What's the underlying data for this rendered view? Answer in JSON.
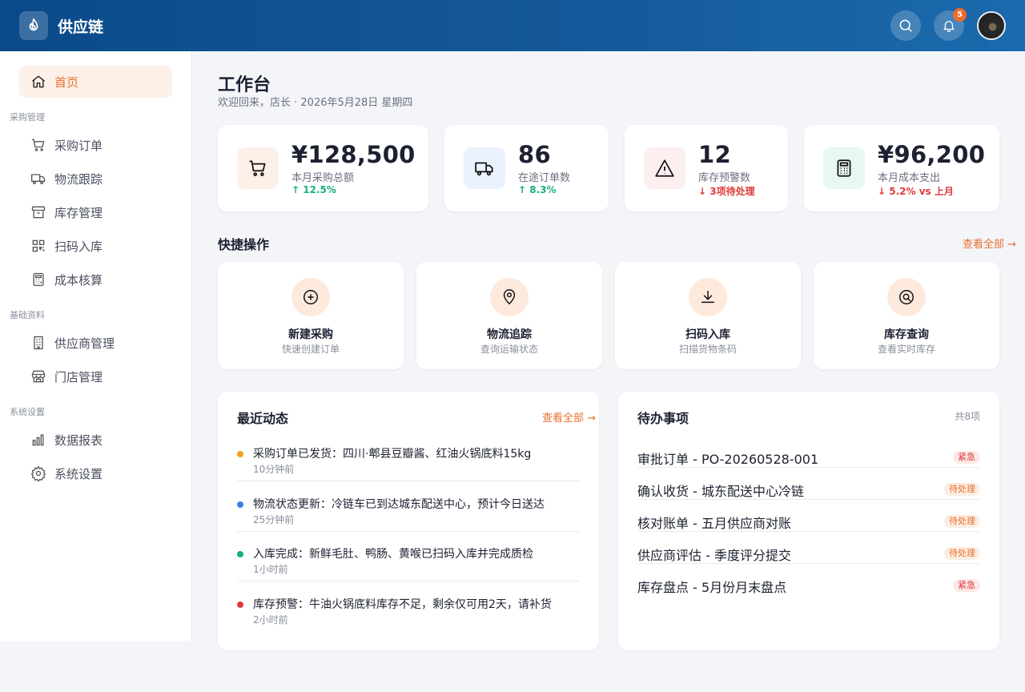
{
  "header": {
    "brand_name": "供应链",
    "notification_count": "5"
  },
  "sidebar": {
    "home": "首页",
    "groups": [
      "采购管理",
      "基础资料",
      "系统设置"
    ],
    "items": [
      {
        "label": "采购订单",
        "icon": "cart-icon"
      },
      {
        "label": "物流跟踪",
        "icon": "truck-icon"
      },
      {
        "label": "库存管理",
        "icon": "archive-icon"
      },
      {
        "label": "扫码入库",
        "icon": "qrcode-icon"
      },
      {
        "label": "成本核算",
        "icon": "calculator-icon"
      },
      {
        "label": "供应商管理",
        "icon": "building-icon"
      },
      {
        "label": "门店管理",
        "icon": "store-icon"
      },
      {
        "label": "数据报表",
        "icon": "chart-icon"
      },
      {
        "label": "系统设置",
        "icon": "settings-icon"
      }
    ]
  },
  "page": {
    "title": "工作台",
    "subtitle": "欢迎回来，店长 · 2026年5月28日 星期四"
  },
  "stats": [
    {
      "value": "¥128,500",
      "label": "本月采购总额",
      "delta": "↑ 12.5%",
      "delta_color": "#18b07a"
    },
    {
      "value": "86",
      "label": "在途订单数",
      "delta": "↑ 8.3%",
      "delta_color": "#18b07a"
    },
    {
      "value": "12",
      "label": "库存预警数",
      "delta": "↓ 3项待处理",
      "delta_color": "#e03a3a"
    },
    {
      "value": "¥96,200",
      "label": "本月成本支出",
      "delta": "↓ 5.2% vs 上月",
      "delta_color": "#e03a3a"
    }
  ],
  "quick": {
    "title": "快捷操作",
    "more": "查看全部 →",
    "items": [
      {
        "title": "新建采购",
        "sub": "快速创建订单"
      },
      {
        "title": "物流追踪",
        "sub": "查询运输状态"
      },
      {
        "title": "扫码入库",
        "sub": "扫描货物条码"
      },
      {
        "title": "库存查询",
        "sub": "查看实时库存"
      }
    ]
  },
  "activity": {
    "title": "最近动态",
    "more": "查看全部 →",
    "items": [
      {
        "text": "采购订单已发货：四川·郫县豆瓣酱、红油火锅底料15kg",
        "time": "10分钟前",
        "color": "#f0a020"
      },
      {
        "text": "物流状态更新：冷链车已到达城东配送中心，预计今日送达",
        "time": "25分钟前",
        "color": "#3a7ee8"
      },
      {
        "text": "入库完成：新鲜毛肚、鸭肠、黄喉已扫码入库并完成质检",
        "time": "1小时前",
        "color": "#18b07a"
      },
      {
        "text": "库存预警：牛油火锅底料库存不足，剩余仅可用2天，请补货",
        "time": "2小时前",
        "color": "#e03a3a"
      }
    ]
  },
  "todos": {
    "title": "待办事项",
    "count": "共8项",
    "items": [
      {
        "text": "审批订单 - PO-20260528-001",
        "tag": "紧急",
        "tone": "red"
      },
      {
        "text": "确认收货 - 城东配送中心冷链",
        "tag": "待处理",
        "tone": "org"
      },
      {
        "text": "核对账单 - 五月供应商对账",
        "tag": "待处理",
        "tone": "org"
      },
      {
        "text": "供应商评估 - 季度评分提交",
        "tag": "待处理",
        "tone": "org"
      },
      {
        "text": "库存盘点 - 5月份月末盘点",
        "tag": "紧急",
        "tone": "red"
      }
    ]
  }
}
